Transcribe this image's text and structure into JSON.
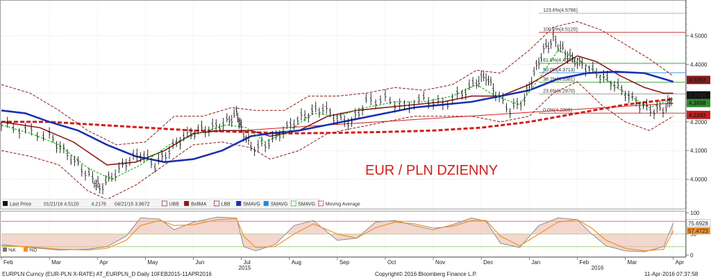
{
  "chart_data": {
    "type": "line",
    "title": "EUR / PLN DZIENNY",
    "price_axis": {
      "ylim": [
        3.9,
        4.62
      ],
      "ticks": [
        "4.5000",
        "4.4000",
        "4.3000",
        "4.2000",
        "4.1000",
        "4.0000"
      ]
    },
    "price_tags": [
      {
        "value": 4.3462,
        "label": "4.3462",
        "color": "#8b1a1a"
      },
      {
        "value": 4.2924,
        "label": "4.2924",
        "color": "#111111"
      },
      {
        "value": 4.2658,
        "label": "4.2658",
        "color": "#2f8b2f"
      },
      {
        "value": 4.2243,
        "label": "4.2243",
        "color": "#c41e1e"
      }
    ],
    "x_labels": [
      {
        "t": 0,
        "label": "Feb"
      },
      {
        "t": 1,
        "label": "Mar"
      },
      {
        "t": 2,
        "label": "Apr"
      },
      {
        "t": 3,
        "label": "May"
      },
      {
        "t": 4,
        "label": "Jun"
      },
      {
        "t": 5,
        "label": "Jul"
      },
      {
        "t": 6,
        "label": "Aug"
      },
      {
        "t": 7,
        "label": "Sep"
      },
      {
        "t": 8,
        "label": "Oct"
      },
      {
        "t": 9,
        "label": "Nov"
      },
      {
        "t": 10,
        "label": "Dec"
      },
      {
        "t": 11,
        "label": "Jan"
      },
      {
        "t": 12,
        "label": "Feb"
      },
      {
        "t": 13,
        "label": "Mar"
      },
      {
        "t": 14,
        "label": "Apr"
      }
    ],
    "year_labels": [
      {
        "t": 5,
        "label": "2015"
      },
      {
        "t": 12.35,
        "label": "2016"
      }
    ],
    "x_range": [
      0,
      14.15
    ],
    "price_series": [
      [
        0,
        4.19
      ],
      [
        0.5,
        4.17
      ],
      [
        1,
        4.15
      ],
      [
        1.3,
        4.1
      ],
      [
        1.6,
        4.05
      ],
      [
        1.9,
        4.0
      ],
      [
        2.05,
        3.97
      ],
      [
        2.3,
        4.01
      ],
      [
        2.6,
        4.06
      ],
      [
        2.9,
        4.09
      ],
      [
        3.2,
        4.05
      ],
      [
        3.5,
        4.1
      ],
      [
        3.8,
        4.15
      ],
      [
        4.1,
        4.17
      ],
      [
        4.4,
        4.18
      ],
      [
        4.7,
        4.2
      ],
      [
        4.9,
        4.23
      ],
      [
        5.0,
        4.18
      ],
      [
        5.2,
        4.11
      ],
      [
        5.5,
        4.12
      ],
      [
        5.8,
        4.16
      ],
      [
        6.1,
        4.2
      ],
      [
        6.4,
        4.23
      ],
      [
        6.7,
        4.25
      ],
      [
        7.0,
        4.21
      ],
      [
        7.3,
        4.2
      ],
      [
        7.6,
        4.27
      ],
      [
        8.0,
        4.28
      ],
      [
        8.4,
        4.25
      ],
      [
        8.8,
        4.28
      ],
      [
        9.2,
        4.26
      ],
      [
        9.6,
        4.3
      ],
      [
        9.9,
        4.34
      ],
      [
        10.1,
        4.36
      ],
      [
        10.3,
        4.3
      ],
      [
        10.6,
        4.24
      ],
      [
        10.9,
        4.28
      ],
      [
        11.1,
        4.37
      ],
      [
        11.3,
        4.45
      ],
      [
        11.5,
        4.49
      ],
      [
        11.7,
        4.45
      ],
      [
        11.9,
        4.42
      ],
      [
        12.1,
        4.4
      ],
      [
        12.4,
        4.37
      ],
      [
        12.7,
        4.34
      ],
      [
        13.0,
        4.3
      ],
      [
        13.3,
        4.26
      ],
      [
        13.6,
        4.24
      ],
      [
        13.85,
        4.25
      ],
      [
        14.0,
        4.29
      ]
    ],
    "sma_blue": [
      [
        0,
        4.24
      ],
      [
        0.5,
        4.23
      ],
      [
        1,
        4.2
      ],
      [
        1.6,
        4.17
      ],
      [
        2.2,
        4.12
      ],
      [
        2.8,
        4.08
      ],
      [
        3.4,
        4.06
      ],
      [
        4.0,
        4.07
      ],
      [
        4.6,
        4.1
      ],
      [
        5.2,
        4.15
      ],
      [
        5.6,
        4.16
      ],
      [
        6.2,
        4.17
      ],
      [
        6.8,
        4.19
      ],
      [
        7.4,
        4.21
      ],
      [
        8.0,
        4.23
      ],
      [
        8.6,
        4.25
      ],
      [
        9.2,
        4.26
      ],
      [
        9.8,
        4.27
      ],
      [
        10.4,
        4.29
      ],
      [
        11.0,
        4.31
      ],
      [
        11.6,
        4.35
      ],
      [
        12.2,
        4.37
      ],
      [
        12.8,
        4.375
      ],
      [
        13.4,
        4.37
      ],
      [
        13.8,
        4.35
      ],
      [
        14.0,
        4.34
      ]
    ],
    "sma_red": [
      [
        0,
        4.2
      ],
      [
        0.8,
        4.18
      ],
      [
        1.5,
        4.13
      ],
      [
        2.2,
        4.05
      ],
      [
        2.8,
        4.06
      ],
      [
        3.4,
        4.1
      ],
      [
        4.0,
        4.16
      ],
      [
        4.6,
        4.17
      ],
      [
        5.2,
        4.17
      ],
      [
        5.6,
        4.15
      ],
      [
        6.2,
        4.17
      ],
      [
        6.8,
        4.22
      ],
      [
        7.4,
        4.24
      ],
      [
        8.0,
        4.25
      ],
      [
        8.6,
        4.26
      ],
      [
        9.2,
        4.27
      ],
      [
        9.8,
        4.29
      ],
      [
        10.4,
        4.29
      ],
      [
        11.0,
        4.33
      ],
      [
        11.5,
        4.38
      ],
      [
        12.0,
        4.43
      ],
      [
        12.4,
        4.41
      ],
      [
        12.9,
        4.36
      ],
      [
        13.4,
        4.32
      ],
      [
        13.8,
        4.3
      ],
      [
        14.0,
        4.3
      ]
    ],
    "sma_green": [
      [
        0,
        4.19
      ],
      [
        0.6,
        4.16
      ],
      [
        1.2,
        4.12
      ],
      [
        1.8,
        4.04
      ],
      [
        2.3,
        4.0
      ],
      [
        2.9,
        4.05
      ],
      [
        3.5,
        4.12
      ],
      [
        4.1,
        4.16
      ],
      [
        4.7,
        4.19
      ],
      [
        5.1,
        4.18
      ],
      [
        5.5,
        4.13
      ],
      [
        6.0,
        4.17
      ],
      [
        6.5,
        4.23
      ],
      [
        7.0,
        4.22
      ],
      [
        7.6,
        4.25
      ],
      [
        8.2,
        4.27
      ],
      [
        8.8,
        4.27
      ],
      [
        9.4,
        4.29
      ],
      [
        9.9,
        4.33
      ],
      [
        10.3,
        4.29
      ],
      [
        10.8,
        4.26
      ],
      [
        11.2,
        4.35
      ],
      [
        11.6,
        4.45
      ],
      [
        12.0,
        4.42
      ],
      [
        12.5,
        4.36
      ],
      [
        13.0,
        4.3
      ],
      [
        13.5,
        4.25
      ],
      [
        14.0,
        4.28
      ]
    ],
    "long_ma": [
      [
        0,
        4.2
      ],
      [
        1.0,
        4.2
      ],
      [
        2.0,
        4.19
      ],
      [
        3.0,
        4.18
      ],
      [
        4.0,
        4.17
      ],
      [
        5.0,
        4.165
      ],
      [
        6.0,
        4.16
      ],
      [
        7.0,
        4.162
      ],
      [
        8.0,
        4.165
      ],
      [
        9.0,
        4.17
      ],
      [
        10.0,
        4.18
      ],
      [
        11.0,
        4.2
      ],
      [
        12.0,
        4.23
      ],
      [
        13.0,
        4.26
      ],
      [
        14.0,
        4.28
      ]
    ],
    "band_upper": [
      [
        0,
        4.33
      ],
      [
        0.6,
        4.3
      ],
      [
        1.2,
        4.24
      ],
      [
        1.8,
        4.17
      ],
      [
        2.4,
        4.12
      ],
      [
        3.0,
        4.13
      ],
      [
        3.6,
        4.22
      ],
      [
        4.2,
        4.22
      ],
      [
        4.8,
        4.25
      ],
      [
        5.3,
        4.24
      ],
      [
        5.9,
        4.24
      ],
      [
        6.4,
        4.29
      ],
      [
        7.0,
        4.29
      ],
      [
        7.6,
        4.3
      ],
      [
        8.2,
        4.32
      ],
      [
        8.8,
        4.31
      ],
      [
        9.4,
        4.33
      ],
      [
        9.9,
        4.38
      ],
      [
        10.4,
        4.37
      ],
      [
        11.0,
        4.45
      ],
      [
        11.5,
        4.53
      ],
      [
        12.0,
        4.55
      ],
      [
        12.5,
        4.52
      ],
      [
        13.0,
        4.47
      ],
      [
        13.5,
        4.42
      ],
      [
        14.0,
        4.36
      ]
    ],
    "band_lower": [
      [
        0,
        4.1
      ],
      [
        0.6,
        4.08
      ],
      [
        1.2,
        4.05
      ],
      [
        1.8,
        3.96
      ],
      [
        2.2,
        3.93
      ],
      [
        2.8,
        3.98
      ],
      [
        3.4,
        4.05
      ],
      [
        4.0,
        4.12
      ],
      [
        4.6,
        4.13
      ],
      [
        5.2,
        4.11
      ],
      [
        5.6,
        4.07
      ],
      [
        6.2,
        4.1
      ],
      [
        6.8,
        4.16
      ],
      [
        7.4,
        4.18
      ],
      [
        8.0,
        4.2
      ],
      [
        8.6,
        4.22
      ],
      [
        9.2,
        4.22
      ],
      [
        9.8,
        4.22
      ],
      [
        10.4,
        4.2
      ],
      [
        11.0,
        4.22
      ],
      [
        11.5,
        4.3
      ],
      [
        12.0,
        4.34
      ],
      [
        12.5,
        4.26
      ],
      [
        13.0,
        4.2
      ],
      [
        13.5,
        4.17
      ],
      [
        14.0,
        4.22
      ]
    ],
    "trendline": [
      [
        5.2,
        4.172
      ],
      [
        14.0,
        4.265
      ]
    ],
    "fib_levels": [
      {
        "label": "123.6%(4.5786)",
        "value": 4.5786,
        "color": "#999999"
      },
      {
        "label": "100.0%(4.5120)",
        "value": 4.512,
        "color": "#c41e1e"
      },
      {
        "label": "61.8%(4.4045)",
        "value": 4.4045,
        "color": "#2f9b2f"
      },
      {
        "label": "50.0%(4.3713)",
        "value": 4.3713,
        "color": "#1e88e5"
      },
      {
        "label": "38.2%(4.3381)",
        "value": 4.3381,
        "color": "#2f9b2f"
      },
      {
        "label": "23.6%(4.2970)",
        "value": 4.297,
        "color": "#999999"
      },
      {
        "label": "0.0%(4.2306)",
        "value": 4.2306,
        "color": "#c41e1e"
      }
    ],
    "fib_x_start": 11.2,
    "oscillator": {
      "ylim": [
        0,
        100
      ],
      "ticks": [
        "100",
        "50",
        "0"
      ],
      "hlines": [
        80,
        50,
        20
      ],
      "k_label": "75.6928",
      "d_label": "57.4723",
      "k_series": [
        [
          0,
          25
        ],
        [
          0.6,
          18
        ],
        [
          1.2,
          12
        ],
        [
          1.8,
          14
        ],
        [
          2.2,
          20
        ],
        [
          2.6,
          45
        ],
        [
          2.9,
          88
        ],
        [
          3.3,
          85
        ],
        [
          3.6,
          60
        ],
        [
          4.0,
          78
        ],
        [
          4.5,
          90
        ],
        [
          4.9,
          88
        ],
        [
          5.05,
          20
        ],
        [
          5.3,
          10
        ],
        [
          5.7,
          25
        ],
        [
          6.1,
          70
        ],
        [
          6.5,
          82
        ],
        [
          7.0,
          35
        ],
        [
          7.4,
          40
        ],
        [
          7.8,
          78
        ],
        [
          8.2,
          82
        ],
        [
          8.6,
          70
        ],
        [
          9.0,
          60
        ],
        [
          9.4,
          72
        ],
        [
          9.8,
          88
        ],
        [
          10.1,
          80
        ],
        [
          10.4,
          28
        ],
        [
          10.8,
          18
        ],
        [
          11.2,
          70
        ],
        [
          11.6,
          88
        ],
        [
          12.0,
          84
        ],
        [
          12.3,
          50
        ],
        [
          12.6,
          22
        ],
        [
          13.0,
          10
        ],
        [
          13.4,
          8
        ],
        [
          13.8,
          20
        ],
        [
          14.0,
          76
        ]
      ],
      "d_series": [
        [
          0,
          22
        ],
        [
          0.6,
          20
        ],
        [
          1.2,
          14
        ],
        [
          1.8,
          12
        ],
        [
          2.2,
          16
        ],
        [
          2.6,
          35
        ],
        [
          2.9,
          70
        ],
        [
          3.3,
          82
        ],
        [
          3.6,
          70
        ],
        [
          4.0,
          72
        ],
        [
          4.5,
          84
        ],
        [
          4.9,
          86
        ],
        [
          5.05,
          45
        ],
        [
          5.3,
          18
        ],
        [
          5.7,
          20
        ],
        [
          6.1,
          50
        ],
        [
          6.5,
          74
        ],
        [
          7.0,
          50
        ],
        [
          7.4,
          40
        ],
        [
          7.8,
          65
        ],
        [
          8.2,
          78
        ],
        [
          8.6,
          74
        ],
        [
          9.0,
          64
        ],
        [
          9.4,
          68
        ],
        [
          9.8,
          82
        ],
        [
          10.1,
          82
        ],
        [
          10.4,
          45
        ],
        [
          10.8,
          22
        ],
        [
          11.2,
          50
        ],
        [
          11.6,
          78
        ],
        [
          12.0,
          84
        ],
        [
          12.3,
          64
        ],
        [
          12.6,
          35
        ],
        [
          13.0,
          16
        ],
        [
          13.4,
          10
        ],
        [
          13.8,
          14
        ],
        [
          14.0,
          57
        ]
      ]
    },
    "legend_items": [
      {
        "label": "Last Price",
        "color": "#111111",
        "kind": "box"
      },
      {
        "label": "01/21/16 4.5120",
        "color": "#555555",
        "kind": "text"
      },
      {
        "label": "4.2176",
        "color": "#555555",
        "kind": "text"
      },
      {
        "label": "04/21/15 3.9672",
        "color": "#555555",
        "kind": "text"
      },
      {
        "label": "UBB",
        "color": "#8b1a1a",
        "kind": "dash"
      },
      {
        "label": "BollMA",
        "color": "#8b1a1a",
        "kind": "box"
      },
      {
        "label": "LBB",
        "color": "#8b1a1a",
        "kind": "dash"
      },
      {
        "label": "SMAVG",
        "color": "#1a2fb0",
        "kind": "box"
      },
      {
        "label": "SMAVG",
        "color": "#1e88e5",
        "kind": "box"
      },
      {
        "label": "SMAVG",
        "color": "#22c322",
        "kind": "dash"
      },
      {
        "label": "Moving Average",
        "color": "#c41e1e",
        "kind": "dash"
      }
    ],
    "osc_legend": [
      {
        "label": "%K",
        "color": "#777777"
      },
      {
        "label": "%D",
        "color": "#f0902a"
      }
    ]
  },
  "footer": {
    "left": "EURPLN Curncy (EUR-PLN X-RATE) AT_EURPLN_D  Daily 10FEB2015-11APR2016",
    "center": "Copyright© 2016 Bloomberg Finance L.P.",
    "right": "11-Apr-2016 07:37:58"
  },
  "colors": {
    "price": "#111111",
    "green": "#22c322",
    "blue": "#1a2fb0",
    "maroon": "#8b1a1a",
    "red": "#d01c1c"
  }
}
